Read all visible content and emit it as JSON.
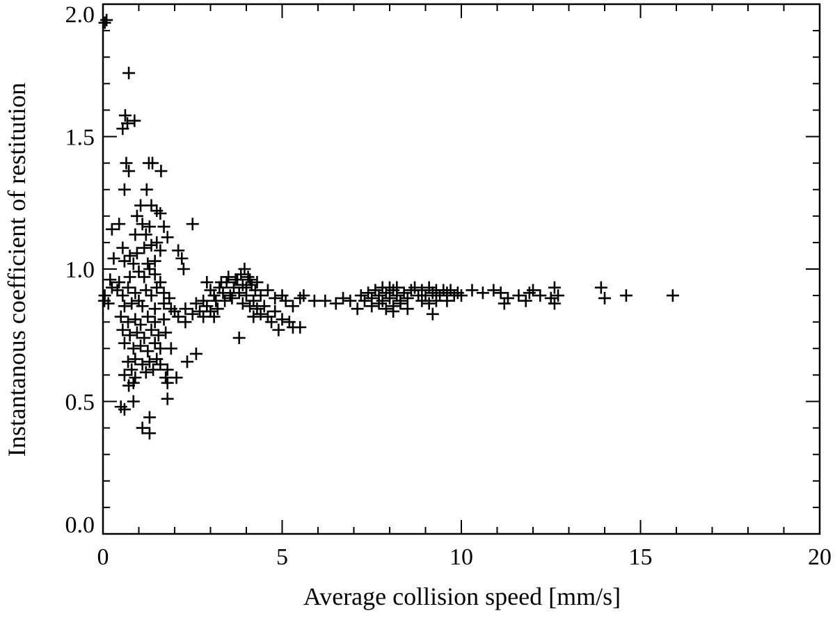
{
  "chart_data": {
    "type": "scatter",
    "title": "",
    "xlabel": "Average collision speed [mm/s]",
    "ylabel": "Instantanous coefficient of restitution",
    "xlim": [
      0,
      20
    ],
    "ylim": [
      0,
      2.0
    ],
    "xticks": [
      0,
      5,
      10,
      15,
      20
    ],
    "xtick_labels": [
      "0",
      "5",
      "10",
      "15",
      "20"
    ],
    "yticks": [
      0.0,
      0.5,
      1.0,
      1.5,
      2.0
    ],
    "ytick_labels": [
      "0.0",
      "0.5",
      "1.0",
      "1.5",
      "2.0"
    ],
    "x_minor_step": 1,
    "y_minor_step": 0.1,
    "grid": false,
    "legend": "none",
    "marker": "plus",
    "color": "#000000",
    "series": [
      {
        "points": [
          [
            0.05,
            1.93
          ],
          [
            0.1,
            1.94
          ],
          [
            0.02,
            0.88
          ],
          [
            0.05,
            0.9
          ],
          [
            0.72,
            1.74
          ],
          [
            0.62,
            1.58
          ],
          [
            0.68,
            1.55
          ],
          [
            0.55,
            1.53
          ],
          [
            0.88,
            1.56
          ],
          [
            0.65,
            1.4
          ],
          [
            0.72,
            1.37
          ],
          [
            1.28,
            1.4
          ],
          [
            1.38,
            1.4
          ],
          [
            1.62,
            1.37
          ],
          [
            0.6,
            1.3
          ],
          [
            1.22,
            1.3
          ],
          [
            1.05,
            1.24
          ],
          [
            1.35,
            1.24
          ],
          [
            1.5,
            1.22
          ],
          [
            1.6,
            1.21
          ],
          [
            1.3,
            1.16
          ],
          [
            0.95,
            1.2
          ],
          [
            1.1,
            1.17
          ],
          [
            0.9,
            1.13
          ],
          [
            1.2,
            1.13
          ],
          [
            0.25,
            1.15
          ],
          [
            0.45,
            1.17
          ],
          [
            1.7,
            1.16
          ],
          [
            1.8,
            1.12
          ],
          [
            2.5,
            1.17
          ],
          [
            0.55,
            1.08
          ],
          [
            0.75,
            1.05
          ],
          [
            0.95,
            1.06
          ],
          [
            1.15,
            1.08
          ],
          [
            1.35,
            1.09
          ],
          [
            1.5,
            1.1
          ],
          [
            1.45,
            1.03
          ],
          [
            1.6,
            1.07
          ],
          [
            1.25,
            1.02
          ],
          [
            2.1,
            1.07
          ],
          [
            2.2,
            1.04
          ],
          [
            2.25,
            1.0
          ],
          [
            0.3,
            1.04
          ],
          [
            0.6,
            1.03
          ],
          [
            0.85,
            1.02
          ],
          [
            1.0,
            0.99
          ],
          [
            1.15,
            0.97
          ],
          [
            1.3,
            1.0
          ],
          [
            1.45,
            0.98
          ],
          [
            1.6,
            0.95
          ],
          [
            0.75,
            0.97
          ],
          [
            0.2,
            0.96
          ],
          [
            0.45,
            0.95
          ],
          [
            0.25,
            0.93
          ],
          [
            0.4,
            0.92
          ],
          [
            0.55,
            0.9
          ],
          [
            0.7,
            0.93
          ],
          [
            0.9,
            0.91
          ],
          [
            1.0,
            0.88
          ],
          [
            1.2,
            0.92
          ],
          [
            1.35,
            0.9
          ],
          [
            1.5,
            0.93
          ],
          [
            1.7,
            0.91
          ],
          [
            1.85,
            0.89
          ],
          [
            0.15,
            0.87
          ],
          [
            0.6,
            0.86
          ],
          [
            0.8,
            0.87
          ],
          [
            1.1,
            0.86
          ],
          [
            1.45,
            0.85
          ],
          [
            1.7,
            0.87
          ],
          [
            1.9,
            0.85
          ],
          [
            2.0,
            0.84
          ],
          [
            2.3,
            0.85
          ],
          [
            2.6,
            0.87
          ],
          [
            2.8,
            0.88
          ],
          [
            0.5,
            0.82
          ],
          [
            0.7,
            0.8
          ],
          [
            0.9,
            0.81
          ],
          [
            1.05,
            0.79
          ],
          [
            1.25,
            0.82
          ],
          [
            1.45,
            0.8
          ],
          [
            1.7,
            0.81
          ],
          [
            2.1,
            0.82
          ],
          [
            2.3,
            0.8
          ],
          [
            2.5,
            0.83
          ],
          [
            0.55,
            0.77
          ],
          [
            0.75,
            0.75
          ],
          [
            0.95,
            0.76
          ],
          [
            1.15,
            0.74
          ],
          [
            1.35,
            0.77
          ],
          [
            1.55,
            0.75
          ],
          [
            1.75,
            0.76
          ],
          [
            0.6,
            0.72
          ],
          [
            0.85,
            0.7
          ],
          [
            1.05,
            0.71
          ],
          [
            1.25,
            0.69
          ],
          [
            1.45,
            0.72
          ],
          [
            1.6,
            0.7
          ],
          [
            1.9,
            0.7
          ],
          [
            2.6,
            0.68
          ],
          [
            0.7,
            0.65
          ],
          [
            0.9,
            0.66
          ],
          [
            1.1,
            0.64
          ],
          [
            1.3,
            0.65
          ],
          [
            1.5,
            0.66
          ],
          [
            0.8,
            0.62
          ],
          [
            1.2,
            0.61
          ],
          [
            1.4,
            0.62
          ],
          [
            1.6,
            0.64
          ],
          [
            2.35,
            0.65
          ],
          [
            1.8,
            0.62
          ],
          [
            0.6,
            0.6
          ],
          [
            0.9,
            0.59
          ],
          [
            1.75,
            0.59
          ],
          [
            2.05,
            0.59
          ],
          [
            0.85,
            0.57
          ],
          [
            1.8,
            0.57
          ],
          [
            0.72,
            0.56
          ],
          [
            1.8,
            0.51
          ],
          [
            0.85,
            0.5
          ],
          [
            0.5,
            0.48
          ],
          [
            0.6,
            0.47
          ],
          [
            1.3,
            0.44
          ],
          [
            1.1,
            0.4
          ],
          [
            1.3,
            0.38
          ],
          [
            2.9,
            0.95
          ],
          [
            3.0,
            0.92
          ],
          [
            3.15,
            0.88
          ],
          [
            3.25,
            0.93
          ],
          [
            3.35,
            0.91
          ],
          [
            3.45,
            0.95
          ],
          [
            3.55,
            0.9
          ],
          [
            3.65,
            0.93
          ],
          [
            3.75,
            0.96
          ],
          [
            3.85,
            0.98
          ],
          [
            3.95,
            1.0
          ],
          [
            4.05,
            0.97
          ],
          [
            4.15,
            0.94
          ],
          [
            4.25,
            0.92
          ],
          [
            3.3,
            0.95
          ],
          [
            3.5,
            0.97
          ],
          [
            3.7,
            0.96
          ],
          [
            3.9,
            0.94
          ],
          [
            4.0,
            0.93
          ],
          [
            4.1,
            0.96
          ],
          [
            4.3,
            0.95
          ],
          [
            3.1,
            0.9
          ],
          [
            3.4,
            0.88
          ],
          [
            3.6,
            0.89
          ],
          [
            3.8,
            0.91
          ],
          [
            4.0,
            0.9
          ],
          [
            4.2,
            0.88
          ],
          [
            4.4,
            0.9
          ],
          [
            4.6,
            0.92
          ],
          [
            4.8,
            0.89
          ],
          [
            5.0,
            0.9
          ],
          [
            3.9,
            0.87
          ],
          [
            4.1,
            0.86
          ],
          [
            4.3,
            0.85
          ],
          [
            4.5,
            0.86
          ],
          [
            2.9,
            0.86
          ],
          [
            3.0,
            0.84
          ],
          [
            3.1,
            0.82
          ],
          [
            3.2,
            0.85
          ],
          [
            2.7,
            0.84
          ],
          [
            2.8,
            0.82
          ],
          [
            4.4,
            0.83
          ],
          [
            4.6,
            0.82
          ],
          [
            4.8,
            0.84
          ],
          [
            5.0,
            0.81
          ],
          [
            4.2,
            0.82
          ],
          [
            4.7,
            0.8
          ],
          [
            5.2,
            0.8
          ],
          [
            5.3,
            0.78
          ],
          [
            5.5,
            0.78
          ],
          [
            4.9,
            0.77
          ],
          [
            3.8,
            0.74
          ],
          [
            5.1,
            0.88
          ],
          [
            5.3,
            0.86
          ],
          [
            5.5,
            0.89
          ],
          [
            5.6,
            0.9
          ],
          [
            5.9,
            0.88
          ],
          [
            6.2,
            0.88
          ],
          [
            6.5,
            0.87
          ],
          [
            6.7,
            0.89
          ],
          [
            7.1,
            0.85
          ],
          [
            6.9,
            0.88
          ],
          [
            7.2,
            0.9
          ],
          [
            7.3,
            0.88
          ],
          [
            7.4,
            0.91
          ],
          [
            7.5,
            0.89
          ],
          [
            7.6,
            0.92
          ],
          [
            7.7,
            0.9
          ],
          [
            7.8,
            0.88
          ],
          [
            7.9,
            0.91
          ],
          [
            8.0,
            0.89
          ],
          [
            8.1,
            0.92
          ],
          [
            8.2,
            0.9
          ],
          [
            8.3,
            0.88
          ],
          [
            8.4,
            0.91
          ],
          [
            8.5,
            0.89
          ],
          [
            7.5,
            0.86
          ],
          [
            7.7,
            0.87
          ],
          [
            7.9,
            0.85
          ],
          [
            8.1,
            0.86
          ],
          [
            8.3,
            0.87
          ],
          [
            8.5,
            0.85
          ],
          [
            8.1,
            0.84
          ],
          [
            7.8,
            0.93
          ],
          [
            8.0,
            0.93
          ],
          [
            8.2,
            0.93
          ],
          [
            8.6,
            0.92
          ],
          [
            8.7,
            0.93
          ],
          [
            8.8,
            0.9
          ],
          [
            8.9,
            0.92
          ],
          [
            9.0,
            0.9
          ],
          [
            9.1,
            0.93
          ],
          [
            9.2,
            0.91
          ],
          [
            9.3,
            0.92
          ],
          [
            9.4,
            0.9
          ],
          [
            9.5,
            0.92
          ],
          [
            9.6,
            0.91
          ],
          [
            9.7,
            0.92
          ],
          [
            9.8,
            0.9
          ],
          [
            9.9,
            0.91
          ],
          [
            10.0,
            0.9
          ],
          [
            8.9,
            0.88
          ],
          [
            9.1,
            0.87
          ],
          [
            9.3,
            0.88
          ],
          [
            9.2,
            0.83
          ],
          [
            9.6,
            0.88
          ],
          [
            10.3,
            0.92
          ],
          [
            10.6,
            0.91
          ],
          [
            10.9,
            0.92
          ],
          [
            11.1,
            0.91
          ],
          [
            11.3,
            0.89
          ],
          [
            11.6,
            0.9
          ],
          [
            11.9,
            0.91
          ],
          [
            12.2,
            0.9
          ],
          [
            12.5,
            0.89
          ],
          [
            12.7,
            0.9
          ],
          [
            11.2,
            0.87
          ],
          [
            11.8,
            0.88
          ],
          [
            12.0,
            0.92
          ],
          [
            12.6,
            0.93
          ],
          [
            12.6,
            0.87
          ],
          [
            13.9,
            0.93
          ],
          [
            14.0,
            0.89
          ],
          [
            14.6,
            0.9
          ],
          [
            15.9,
            0.9
          ]
        ]
      }
    ]
  }
}
